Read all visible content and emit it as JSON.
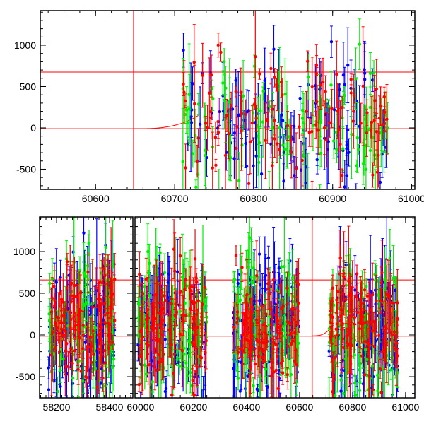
{
  "chart_data": [
    {
      "type": "scatter",
      "panel": "top",
      "title": "",
      "xlabel": "",
      "ylabel": "",
      "xlim": [
        60530,
        61004
      ],
      "ylim": [
        -744,
        1419
      ],
      "xticks": [
        "60600",
        "60700",
        "60800",
        "60900",
        "61000"
      ],
      "xtick_values": [
        60600,
        60700,
        60800,
        60900,
        61000
      ],
      "yticks": [
        "-500",
        "0",
        "500",
        "1000"
      ],
      "ytick_values": [
        -500,
        0,
        500,
        1000
      ],
      "hlines": [
        675,
        -10
      ],
      "vlines": [
        60648
      ],
      "segments": [
        [
          60710,
          60970
        ]
      ]
    },
    {
      "type": "scatter",
      "panel": "bottom",
      "title": "",
      "xlabel": "",
      "ylabel": "",
      "subpanels": [
        {
          "xlim": [
            58136,
            58488
          ],
          "xticks": [
            "58200",
            "58400"
          ],
          "xtick_values": [
            58200,
            58400
          ],
          "segments": [
            [
              58170,
              58420
            ]
          ]
        },
        {
          "xlim": [
            59979,
            61035
          ],
          "xticks": [
            "60000",
            "60200",
            "60400",
            "60600",
            "60800",
            "61000"
          ],
          "xtick_values": [
            60000,
            60200,
            60400,
            60600,
            60800,
            61000
          ],
          "segments": [
            [
              59990,
              60250
            ],
            [
              60350,
              60600
            ],
            [
              60710,
              60970
            ]
          ]
        }
      ],
      "ylim": [
        -754,
        1415
      ],
      "yticks": [
        "-500",
        "0",
        "500",
        "1000"
      ],
      "ytick_values": [
        -500,
        0,
        500,
        1000
      ],
      "hlines": [
        660,
        -15
      ],
      "vlines": [
        60648
      ]
    }
  ],
  "series": [
    {
      "name": "blue",
      "color": "#0000ff",
      "mean": 50,
      "sd": 420,
      "err": 260
    },
    {
      "name": "green",
      "color": "#00ee00",
      "mean": 80,
      "sd": 400,
      "err": 240
    },
    {
      "name": "red",
      "color": "#ff0000",
      "mean": 120,
      "sd": 330,
      "err": 220
    }
  ],
  "model_curve": {
    "color": "#ff0000",
    "x_start": 60648,
    "x_end": 60730,
    "y_start": -10,
    "y_end": 150
  }
}
